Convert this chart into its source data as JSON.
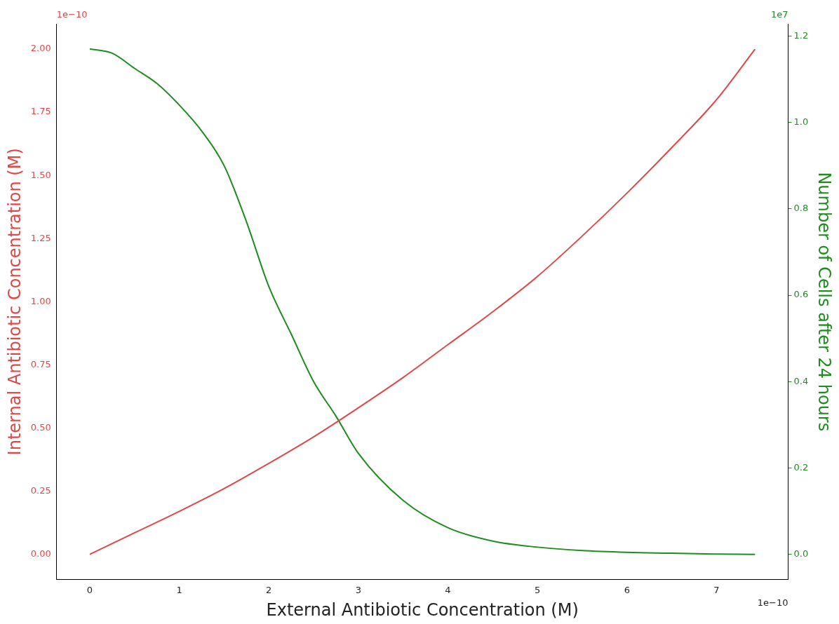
{
  "chart_data": {
    "type": "line",
    "xlabel": "External Antibiotic Concentration (M)",
    "ylabel": "Internal Antibiotic Concentration (M)",
    "y2label": "Number of Cells after 24 hours",
    "annotations": [
      "1e−10",
      "1e7",
      "1e−10"
    ],
    "xlim": [
      -0.37,
      7.8
    ],
    "xticks": [
      0,
      1,
      2,
      3,
      4,
      5,
      6,
      7
    ],
    "ylim": [
      -0.1,
      2.1
    ],
    "yticks": [
      {
        "value": 0,
        "label": "0.00"
      },
      {
        "value": 0.25,
        "label": "0.25"
      },
      {
        "value": 0.5,
        "label": "0.50"
      },
      {
        "value": 0.75,
        "label": "0.75"
      },
      {
        "value": 1,
        "label": "1.00"
      },
      {
        "value": 1.25,
        "label": "1.25"
      },
      {
        "value": 1.5,
        "label": "1.50"
      },
      {
        "value": 1.75,
        "label": "1.75"
      },
      {
        "value": 2,
        "label": "2.00"
      }
    ],
    "y2lim": [
      -0.058,
      1.228
    ],
    "y2ticks": [
      {
        "value": 0,
        "label": "0.0"
      },
      {
        "value": 0.2,
        "label": "0.2"
      },
      {
        "value": 0.4,
        "label": "0.4"
      },
      {
        "value": 0.6,
        "label": "0.6"
      },
      {
        "value": 0.8,
        "label": "0.8"
      },
      {
        "value": 1,
        "label": "1.0"
      },
      {
        "value": 1.2,
        "label": "1.2"
      }
    ],
    "grid": false,
    "legend": false,
    "marker": "none",
    "line_style": "solid",
    "series": [
      {
        "color": "#e04848",
        "x": [
          0,
          0.5,
          1,
          1.5,
          2,
          2.5,
          3,
          3.5,
          4,
          4.5,
          5,
          5.5,
          6,
          6.5,
          7,
          7.43
        ],
        "values": [
          0,
          0.085,
          0.17,
          0.26,
          0.36,
          0.465,
          0.58,
          0.7,
          0.83,
          0.96,
          1.1,
          1.26,
          1.43,
          1.61,
          1.8,
          2.0
        ]
      },
      {
        "color": "#1e8c1e",
        "axis": "y2",
        "x": [
          0,
          0.25,
          0.5,
          0.75,
          1,
          1.25,
          1.5,
          1.75,
          2,
          2.25,
          2.5,
          2.75,
          3,
          3.5,
          4,
          4.5,
          5,
          5.5,
          6,
          6.5,
          7,
          7.43
        ],
        "values": [
          1.17,
          1.16,
          1.125,
          1.09,
          1.04,
          0.98,
          0.9,
          0.77,
          0.62,
          0.51,
          0.4,
          0.32,
          0.234,
          0.125,
          0.062,
          0.031,
          0.017,
          0.009,
          0.005,
          0.003,
          0.001,
          0
        ]
      }
    ]
  }
}
